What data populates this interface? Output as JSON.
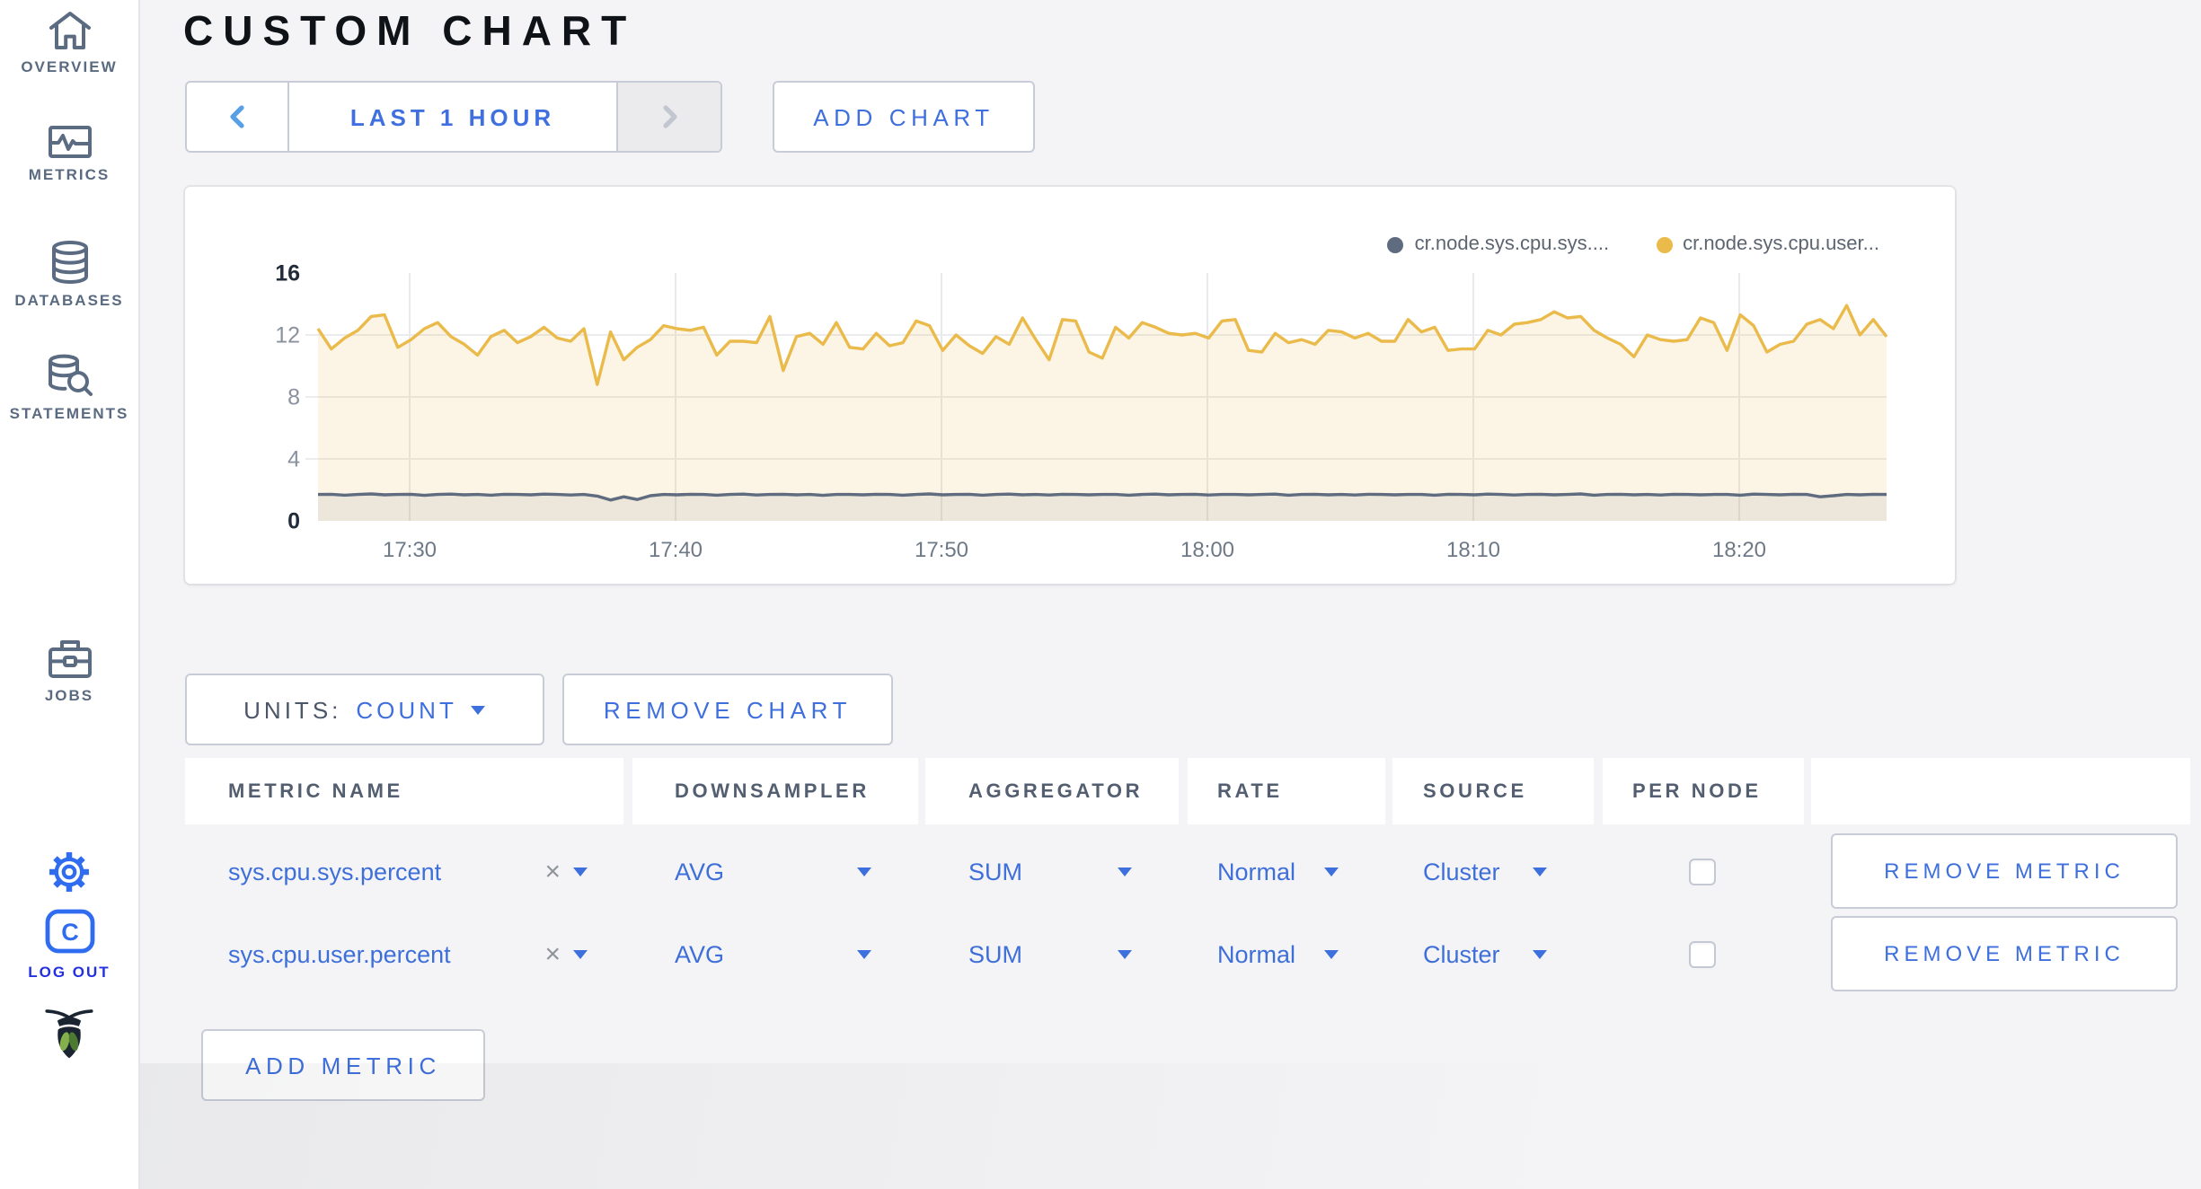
{
  "sidebar": {
    "items": [
      {
        "label": "OVERVIEW"
      },
      {
        "label": "METRICS"
      },
      {
        "label": "DATABASES"
      },
      {
        "label": "STATEMENTS"
      },
      {
        "label": "JOBS"
      }
    ],
    "logout_label": "LOG OUT"
  },
  "header": {
    "title": "CUSTOM CHART"
  },
  "toolbar": {
    "time_range_label": "LAST 1 HOUR",
    "add_chart_label": "ADD CHART"
  },
  "chart_controls": {
    "units_label": "UNITS:",
    "units_value": "COUNT",
    "remove_chart_label": "REMOVE CHART"
  },
  "icons": {
    "clear_metric": "×"
  },
  "chart_data": {
    "type": "line",
    "title": "",
    "xlabel": "",
    "ylabel": "",
    "ylim": [
      0,
      16
    ],
    "y_ticks": [
      0,
      4,
      8,
      12,
      16
    ],
    "x_ticks": [
      "17:30",
      "17:40",
      "17:50",
      "18:00",
      "18:10",
      "18:20"
    ],
    "grid": true,
    "legend_position": "top-right",
    "series": [
      {
        "name": "cr.node.sys.cpu.sys....",
        "color": "#5f6b7f",
        "fill": "rgba(95,107,127,0.10)",
        "values": [
          1.7,
          1.72,
          1.66,
          1.7,
          1.74,
          1.68,
          1.7,
          1.72,
          1.65,
          1.7,
          1.73,
          1.68,
          1.7,
          1.66,
          1.72,
          1.7,
          1.68,
          1.73,
          1.7,
          1.67,
          1.7,
          1.6,
          1.35,
          1.55,
          1.38,
          1.62,
          1.7,
          1.68,
          1.72,
          1.7,
          1.66,
          1.7,
          1.73,
          1.67,
          1.7,
          1.72,
          1.68,
          1.7,
          1.65,
          1.71,
          1.7,
          1.68,
          1.72,
          1.7,
          1.66,
          1.7,
          1.74,
          1.68,
          1.7,
          1.72,
          1.66,
          1.7,
          1.73,
          1.68,
          1.7,
          1.67,
          1.72,
          1.7,
          1.68,
          1.71,
          1.7,
          1.66,
          1.7,
          1.73,
          1.68,
          1.7,
          1.72,
          1.67,
          1.7,
          1.71,
          1.68,
          1.7,
          1.73,
          1.66,
          1.7,
          1.72,
          1.68,
          1.7,
          1.67,
          1.72,
          1.7,
          1.68,
          1.71,
          1.7,
          1.66,
          1.72,
          1.7,
          1.68,
          1.73,
          1.7,
          1.67,
          1.7,
          1.72,
          1.68,
          1.7,
          1.74,
          1.66,
          1.7,
          1.72,
          1.68,
          1.7,
          1.67,
          1.72,
          1.7,
          1.68,
          1.71,
          1.7,
          1.66,
          1.73,
          1.7,
          1.68,
          1.72,
          1.7,
          1.55,
          1.62,
          1.7,
          1.68,
          1.72,
          1.7
        ]
      },
      {
        "name": "cr.node.sys.cpu.user...",
        "color": "#eaba4a",
        "fill": "rgba(234,186,74,0.14)",
        "values": [
          12.4,
          11.1,
          11.8,
          12.3,
          13.2,
          13.3,
          11.2,
          11.7,
          12.4,
          12.8,
          11.9,
          11.4,
          10.7,
          11.9,
          12.3,
          11.5,
          11.9,
          12.5,
          11.8,
          11.6,
          12.4,
          8.8,
          12.2,
          10.4,
          11.2,
          11.7,
          12.6,
          12.4,
          12.3,
          12.5,
          10.7,
          11.6,
          11.6,
          11.5,
          13.2,
          9.7,
          11.9,
          12.1,
          11.4,
          12.8,
          11.2,
          11.1,
          12.1,
          11.3,
          11.5,
          12.9,
          12.6,
          11.0,
          12.0,
          11.3,
          10.8,
          11.9,
          11.4,
          13.1,
          11.7,
          10.4,
          13.0,
          12.9,
          10.9,
          10.5,
          12.5,
          11.8,
          12.8,
          12.5,
          12.1,
          12.0,
          12.1,
          11.8,
          12.9,
          13.0,
          11.0,
          10.9,
          12.1,
          11.5,
          11.7,
          11.4,
          12.3,
          12.2,
          11.8,
          12.1,
          11.6,
          11.6,
          13.0,
          12.2,
          12.5,
          11.0,
          11.1,
          11.1,
          12.3,
          12.0,
          12.7,
          12.8,
          13.0,
          13.5,
          13.1,
          13.2,
          12.3,
          11.8,
          11.4,
          10.6,
          12.0,
          11.7,
          11.6,
          11.7,
          13.1,
          12.8,
          11.0,
          13.3,
          12.6,
          10.9,
          11.4,
          11.6,
          12.7,
          13.0,
          12.4,
          13.9,
          12.0,
          13.0,
          11.9
        ]
      }
    ]
  },
  "metrics_table": {
    "columns": [
      "METRIC NAME",
      "DOWNSAMPLER",
      "AGGREGATOR",
      "RATE",
      "SOURCE",
      "PER NODE",
      ""
    ],
    "remove_metric_label": "REMOVE METRIC",
    "add_metric_label": "ADD METRIC",
    "rows": [
      {
        "name": "sys.cpu.sys.percent",
        "downsampler": "AVG",
        "aggregator": "SUM",
        "rate": "Normal",
        "source": "Cluster",
        "per_node_checked": false
      },
      {
        "name": "sys.cpu.user.percent",
        "downsampler": "AVG",
        "aggregator": "SUM",
        "rate": "Normal",
        "source": "Cluster",
        "per_node_checked": false
      }
    ]
  }
}
